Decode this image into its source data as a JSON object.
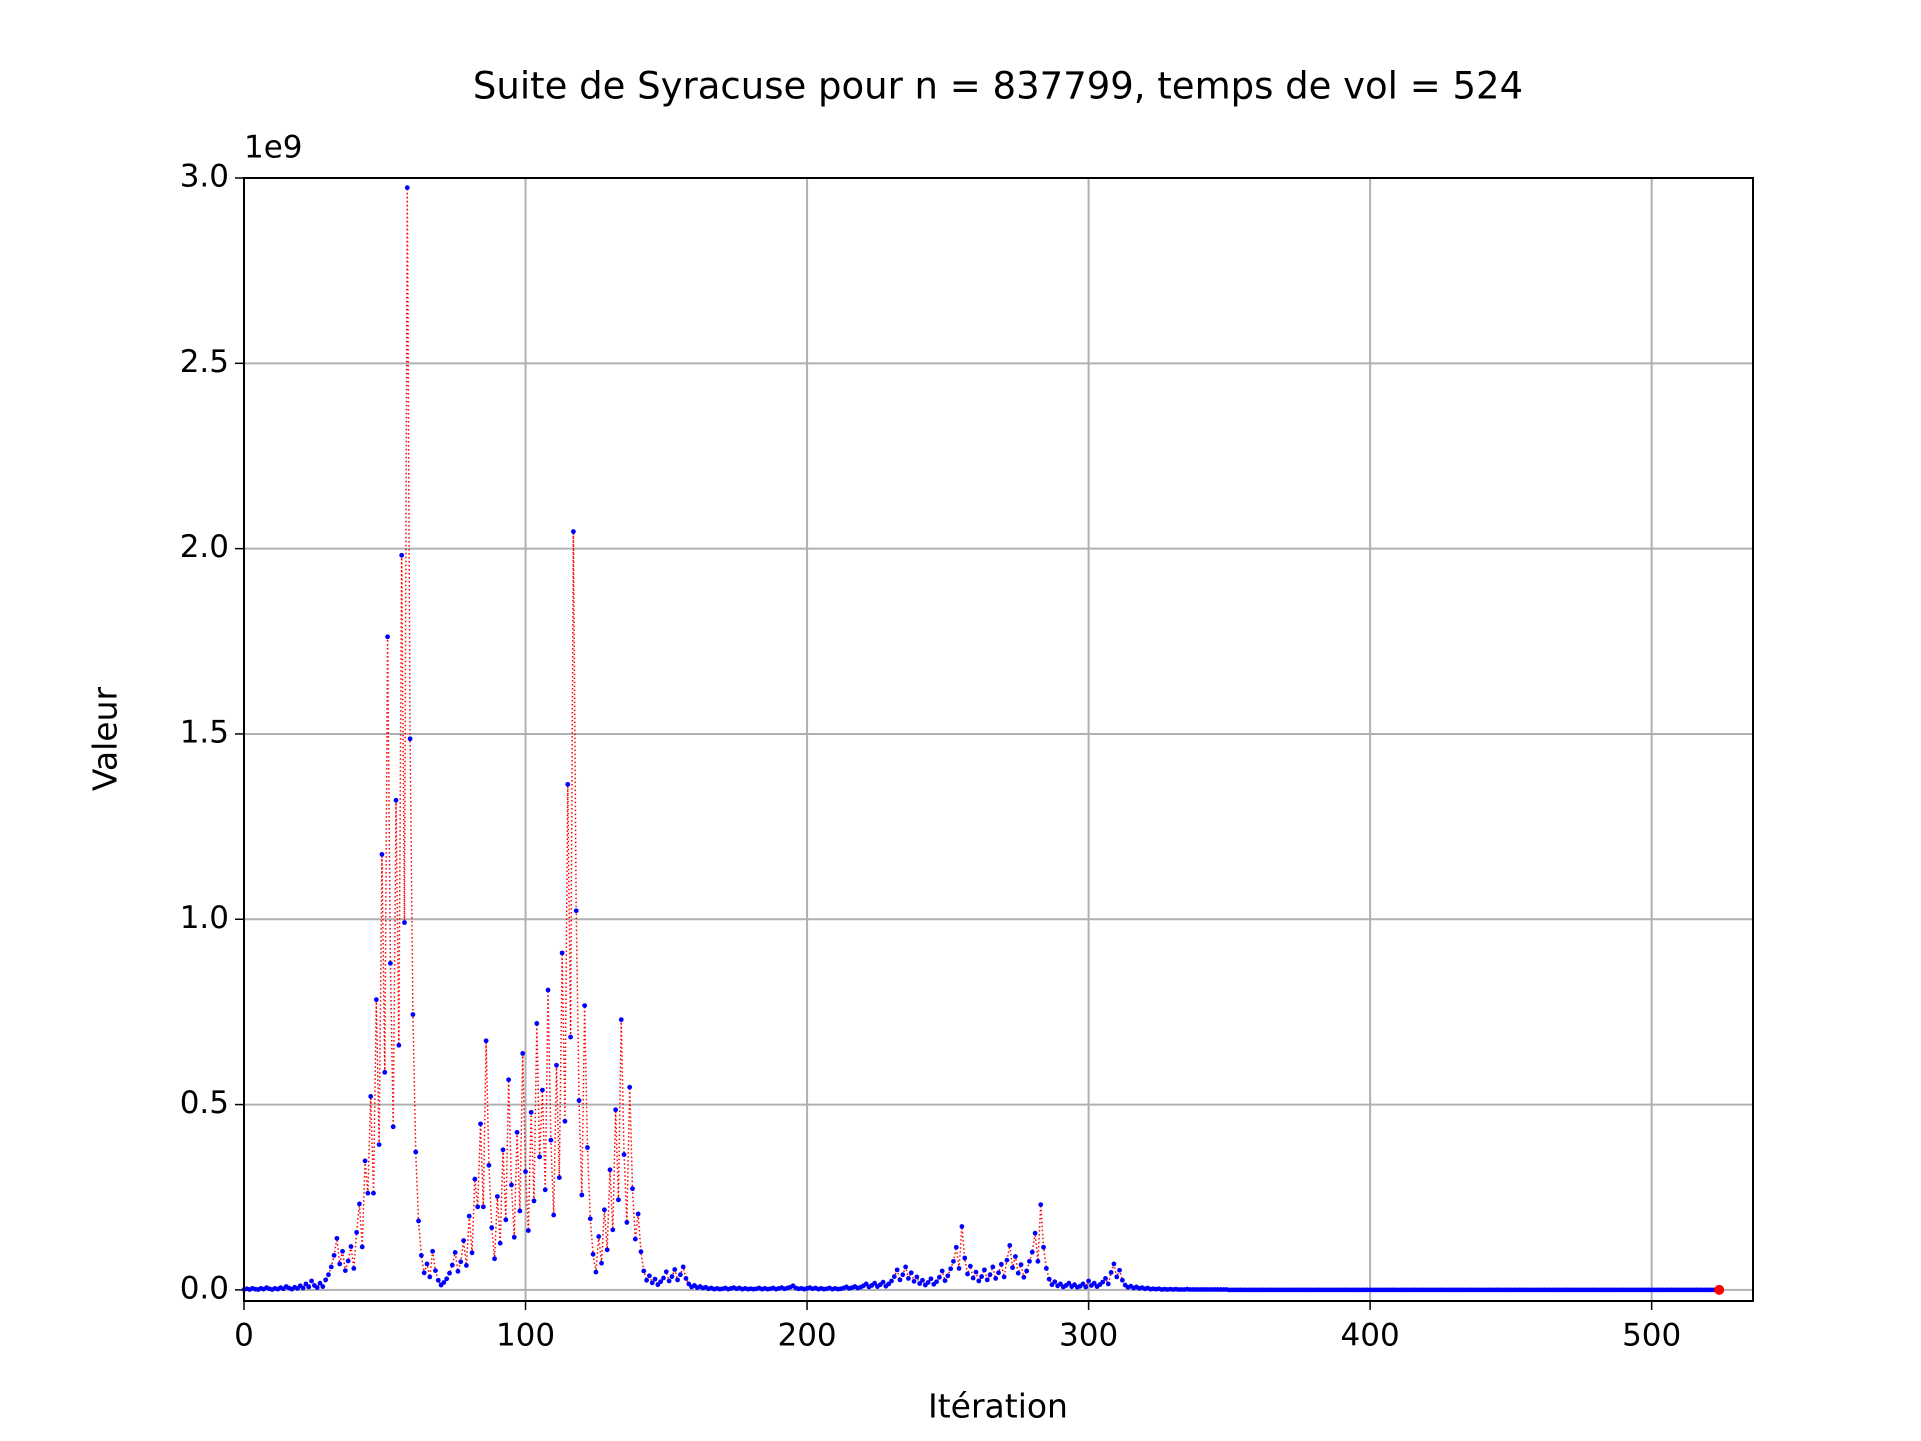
{
  "chart_data": {
    "type": "line",
    "title": "Suite de Syracuse pour n = 837799, temps de vol = 524",
    "x_label": "Itération",
    "y_label": "Valeur",
    "y_offset_label": "1e9",
    "xlim": [
      0,
      536
    ],
    "xticks": [
      0,
      100,
      200,
      300,
      400,
      500
    ],
    "ylim": [
      -0.03,
      3.0
    ],
    "yticks": [
      {
        "value": 0,
        "label": "0.0"
      },
      {
        "value": 0.5,
        "label": "0.5"
      },
      {
        "value": 1,
        "label": "1.0"
      },
      {
        "value": 1.5,
        "label": "1.5"
      },
      {
        "value": 2,
        "label": "2.0"
      },
      {
        "value": 2.5,
        "label": "2.5"
      },
      {
        "value": 3,
        "label": "3.0"
      }
    ],
    "grid": true,
    "series": [
      {
        "color": "#0000ff",
        "line_color": "#ff0000",
        "last_point_color": "#ff0000",
        "values": [
          0.001,
          0.003,
          0.001,
          0.004,
          0.002,
          0.001,
          0.004,
          0.002,
          0.006,
          0.003,
          0.001,
          0.004,
          0.002,
          0.006,
          0.003,
          0.009,
          0.005,
          0.002,
          0.007,
          0.004,
          0.011,
          0.005,
          0.016,
          0.008,
          0.024,
          0.012,
          0.006,
          0.018,
          0.009,
          0.027,
          0.041,
          0.062,
          0.093,
          0.139,
          0.07,
          0.104,
          0.052,
          0.078,
          0.117,
          0.058,
          0.155,
          0.232,
          0.116,
          0.348,
          0.261,
          0.522,
          0.261,
          0.783,
          0.392,
          1.175,
          0.587,
          1.762,
          0.881,
          0.44,
          1.321,
          0.66,
          1.982,
          0.991,
          2.974,
          1.487,
          0.743,
          0.372,
          0.186,
          0.093,
          0.046,
          0.07,
          0.035,
          0.104,
          0.052,
          0.026,
          0.013,
          0.02,
          0.03,
          0.045,
          0.067,
          0.101,
          0.05,
          0.076,
          0.133,
          0.066,
          0.199,
          0.1,
          0.299,
          0.224,
          0.448,
          0.224,
          0.672,
          0.336,
          0.168,
          0.084,
          0.252,
          0.126,
          0.378,
          0.189,
          0.567,
          0.283,
          0.142,
          0.425,
          0.213,
          0.638,
          0.319,
          0.16,
          0.479,
          0.24,
          0.719,
          0.359,
          0.539,
          0.27,
          0.809,
          0.404,
          0.202,
          0.606,
          0.303,
          0.909,
          0.455,
          1.364,
          0.682,
          2.046,
          1.023,
          0.511,
          0.256,
          0.767,
          0.384,
          0.192,
          0.096,
          0.048,
          0.144,
          0.072,
          0.216,
          0.108,
          0.324,
          0.162,
          0.486,
          0.243,
          0.729,
          0.365,
          0.182,
          0.547,
          0.273,
          0.137,
          0.205,
          0.103,
          0.051,
          0.026,
          0.038,
          0.019,
          0.029,
          0.014,
          0.022,
          0.032,
          0.049,
          0.024,
          0.036,
          0.055,
          0.027,
          0.041,
          0.062,
          0.031,
          0.016,
          0.008,
          0.012,
          0.006,
          0.009,
          0.005,
          0.007,
          0.003,
          0.005,
          0.002,
          0.004,
          0.002,
          0.003,
          0.005,
          0.002,
          0.004,
          0.006,
          0.003,
          0.005,
          0.002,
          0.004,
          0.002,
          0.003,
          0.002,
          0.003,
          0.005,
          0.002,
          0.004,
          0.002,
          0.003,
          0.005,
          0.002,
          0.004,
          0.006,
          0.003,
          0.005,
          0.007,
          0.011,
          0.005,
          0.003,
          0.004,
          0.002,
          0.004,
          0.006,
          0.003,
          0.005,
          0.002,
          0.004,
          0.002,
          0.003,
          0.005,
          0.002,
          0.004,
          0.002,
          0.003,
          0.005,
          0.008,
          0.004,
          0.006,
          0.009,
          0.005,
          0.007,
          0.011,
          0.016,
          0.008,
          0.012,
          0.018,
          0.009,
          0.014,
          0.021,
          0.01,
          0.016,
          0.024,
          0.036,
          0.054,
          0.027,
          0.041,
          0.062,
          0.031,
          0.046,
          0.023,
          0.035,
          0.017,
          0.026,
          0.013,
          0.02,
          0.03,
          0.015,
          0.022,
          0.034,
          0.051,
          0.025,
          0.038,
          0.057,
          0.077,
          0.115,
          0.058,
          0.171,
          0.086,
          0.043,
          0.064,
          0.032,
          0.048,
          0.024,
          0.036,
          0.054,
          0.027,
          0.041,
          0.062,
          0.031,
          0.046,
          0.069,
          0.035,
          0.08,
          0.12,
          0.06,
          0.09,
          0.045,
          0.068,
          0.034,
          0.051,
          0.077,
          0.102,
          0.153,
          0.077,
          0.23,
          0.115,
          0.058,
          0.029,
          0.014,
          0.022,
          0.011,
          0.016,
          0.008,
          0.012,
          0.018,
          0.009,
          0.014,
          0.007,
          0.01,
          0.016,
          0.008,
          0.024,
          0.012,
          0.018,
          0.009,
          0.014,
          0.021,
          0.031,
          0.016,
          0.047,
          0.07,
          0.035,
          0.053,
          0.026,
          0.013,
          0.007,
          0.01,
          0.005,
          0.008,
          0.004,
          0.006,
          0.003,
          0.005,
          0.002,
          0.003,
          0.002,
          0.003,
          0.001,
          0.002,
          0.001,
          0.002,
          0.001,
          0.002,
          0.001,
          0.001,
          0.001,
          0.002,
          0.001,
          0.001,
          0.001,
          0.001,
          0.001,
          0.001,
          0.001,
          0.001,
          0.001,
          0.001,
          0.001,
          0.001,
          0.001,
          0.001,
          0,
          0,
          0,
          0,
          0,
          0,
          0,
          0,
          0,
          0,
          0,
          0,
          0,
          0,
          0,
          0,
          0,
          0,
          0,
          0,
          0,
          0,
          0,
          0,
          0,
          0,
          0,
          0,
          0,
          0,
          0,
          0,
          0,
          0,
          0,
          0,
          0,
          0,
          0,
          0,
          0,
          0,
          0,
          0,
          0,
          0,
          0,
          0,
          0,
          0,
          0,
          0,
          0,
          0,
          0,
          0,
          0,
          0,
          0,
          0,
          0,
          0,
          0,
          0,
          0,
          0,
          0,
          0,
          0,
          0,
          0,
          0,
          0,
          0,
          0,
          0,
          0,
          0,
          0,
          0,
          0,
          0,
          0,
          0,
          0,
          0,
          0,
          0,
          0,
          0,
          0,
          0,
          0,
          0,
          0,
          0,
          0,
          0,
          0,
          0,
          0,
          0,
          0,
          0,
          0,
          0,
          0,
          0,
          0,
          0,
          0,
          0,
          0,
          0,
          0,
          0,
          0,
          0,
          0,
          0,
          0,
          0,
          0,
          0,
          0,
          0,
          0,
          0,
          0,
          0,
          0,
          0,
          0,
          0,
          0,
          0,
          0,
          0,
          0,
          0,
          0,
          0,
          0,
          0,
          0,
          0,
          0,
          0,
          0,
          0,
          0,
          0,
          0,
          0,
          0,
          0,
          0,
          0,
          0,
          0,
          0,
          0,
          0,
          0,
          0,
          0,
          0,
          0,
          0,
          0,
          0,
          0,
          0,
          0,
          0
        ]
      }
    ]
  }
}
